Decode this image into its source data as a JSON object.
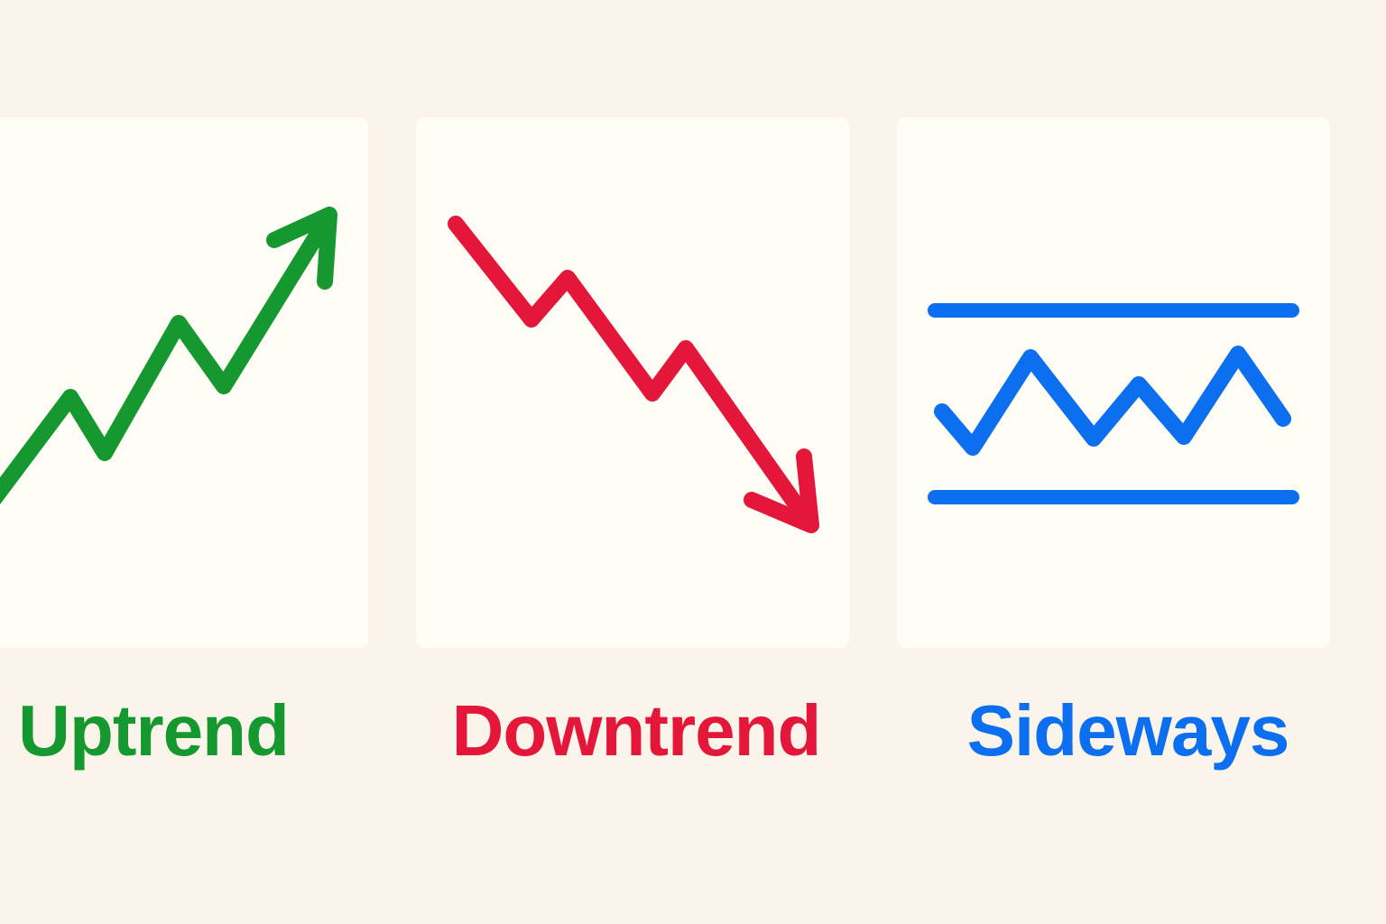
{
  "colors": {
    "background": "#fbf4ea",
    "panel": "#fffdf5",
    "uptrend": "#14982f",
    "downtrend": "#e4173a",
    "sideways": "#0b6ff0"
  },
  "trends": [
    {
      "label": "Uptrend",
      "direction": "up",
      "color": "#14982f",
      "icon": "trend-up-arrow-icon"
    },
    {
      "label": "Downtrend",
      "direction": "down",
      "color": "#e4173a",
      "icon": "trend-down-arrow-icon"
    },
    {
      "label": "Sideways",
      "direction": "sideways",
      "color": "#0b6ff0",
      "icon": "range-bound-zigzag-icon"
    }
  ]
}
